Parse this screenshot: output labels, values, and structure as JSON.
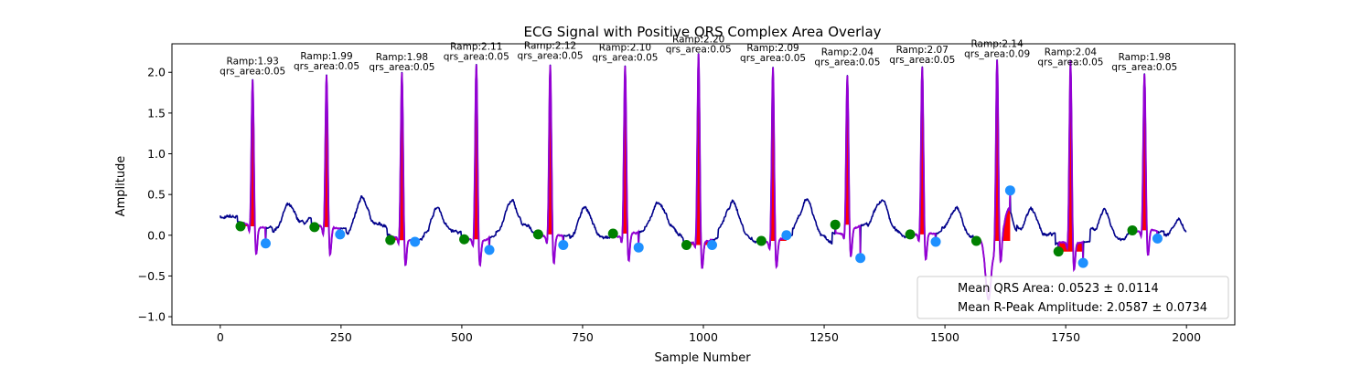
{
  "chart_data": {
    "type": "line",
    "title": "ECG Signal with Positive QRS Complex Area Overlay",
    "xlabel": "Sample Number",
    "ylabel": "Amplitude",
    "xlim": [
      -100,
      2100
    ],
    "ylim": [
      -1.1,
      2.35
    ],
    "x_ticks": [
      0,
      250,
      500,
      750,
      1000,
      1250,
      1500,
      1750,
      2000
    ],
    "y_ticks": [
      -1.0,
      -0.5,
      0.0,
      0.5,
      1.0,
      1.5,
      2.0
    ],
    "grid": false,
    "legend_position": "lower-right",
    "legend_entries": [
      "Mean QRS Area: 0.0523 ± 0.0114",
      "Mean R-Peak Amplitude: 2.0587 ± 0.0734"
    ],
    "colors": {
      "signal": "#00008b",
      "qrs_segment": "#9400d3",
      "qrs_area_fill": "#ff0000",
      "qrs_onset_marker": "#008000",
      "qrs_offset_marker": "#1e90ff"
    },
    "r_peaks": [
      {
        "x": 67,
        "amplitude": 1.93,
        "area_text": "Ramp:1.93",
        "qrs_text": "qrs_area:0.05",
        "onset": {
          "x": 42,
          "y": 0.11
        },
        "offset": {
          "x": 94,
          "y": -0.1
        }
      },
      {
        "x": 220,
        "amplitude": 1.99,
        "area_text": "Ramp:1.99",
        "qrs_text": "qrs_area:0.05",
        "onset": {
          "x": 195,
          "y": 0.1
        },
        "offset": {
          "x": 248,
          "y": 0.01
        }
      },
      {
        "x": 376,
        "amplitude": 1.98,
        "area_text": "Ramp:1.98",
        "qrs_text": "qrs_area:0.05",
        "onset": {
          "x": 352,
          "y": -0.06
        },
        "offset": {
          "x": 403,
          "y": -0.08
        }
      },
      {
        "x": 530,
        "amplitude": 2.11,
        "area_text": "Ramp:2.11",
        "qrs_text": "qrs_area:0.05",
        "onset": {
          "x": 505,
          "y": -0.05
        },
        "offset": {
          "x": 557,
          "y": -0.18
        }
      },
      {
        "x": 683,
        "amplitude": 2.12,
        "area_text": "Ramp:2.12",
        "qrs_text": "qrs_area:0.05",
        "onset": {
          "x": 658,
          "y": 0.01
        },
        "offset": {
          "x": 710,
          "y": -0.12
        }
      },
      {
        "x": 838,
        "amplitude": 2.1,
        "area_text": "Ramp:2.10",
        "qrs_text": "qrs_area:0.05",
        "onset": {
          "x": 813,
          "y": 0.02
        },
        "offset": {
          "x": 866,
          "y": -0.15
        }
      },
      {
        "x": 990,
        "amplitude": 2.2,
        "area_text": "Ramp:2.20",
        "qrs_text": "qrs_area:0.05",
        "onset": {
          "x": 965,
          "y": -0.12
        },
        "offset": {
          "x": 1018,
          "y": -0.12
        }
      },
      {
        "x": 1144,
        "amplitude": 2.09,
        "area_text": "Ramp:2.09",
        "qrs_text": "qrs_area:0.05",
        "onset": {
          "x": 1120,
          "y": -0.07
        },
        "offset": {
          "x": 1172,
          "y": 0.0
        }
      },
      {
        "x": 1298,
        "amplitude": 2.04,
        "area_text": "Ramp:2.04",
        "qrs_text": "qrs_area:0.05",
        "onset": {
          "x": 1273,
          "y": 0.13
        },
        "offset": {
          "x": 1325,
          "y": -0.28
        }
      },
      {
        "x": 1453,
        "amplitude": 2.07,
        "area_text": "Ramp:2.07",
        "qrs_text": "qrs_area:0.05",
        "onset": {
          "x": 1428,
          "y": 0.01
        },
        "offset": {
          "x": 1481,
          "y": -0.08
        }
      },
      {
        "x": 1608,
        "amplitude": 2.14,
        "area_text": "Ramp:2.14",
        "qrs_text": "qrs_area:0.09",
        "onset": {
          "x": 1565,
          "y": -0.07
        },
        "offset": {
          "x": 1635,
          "y": 0.55
        }
      },
      {
        "x": 1760,
        "amplitude": 2.04,
        "area_text": "Ramp:2.04",
        "qrs_text": "qrs_area:0.05",
        "onset": {
          "x": 1735,
          "y": -0.2
        },
        "offset": {
          "x": 1786,
          "y": -0.34
        }
      },
      {
        "x": 1913,
        "amplitude": 1.98,
        "area_text": "Ramp:1.98",
        "qrs_text": "qrs_area:0.05",
        "onset": {
          "x": 1888,
          "y": 0.06
        },
        "offset": {
          "x": 1940,
          "y": -0.04
        }
      }
    ]
  }
}
